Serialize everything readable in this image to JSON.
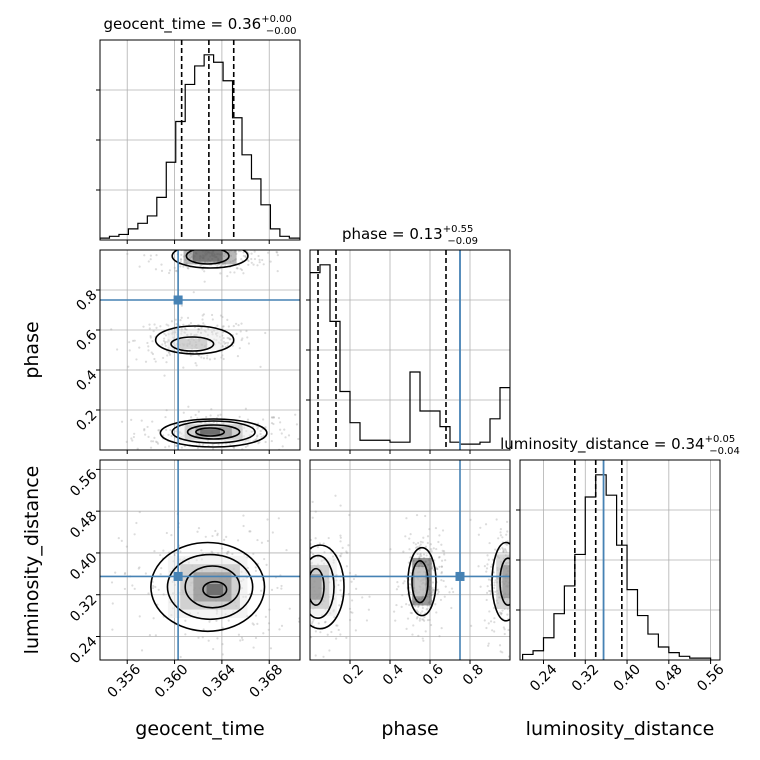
{
  "chart_data": {
    "type": "corner",
    "parameters": [
      "geocent_time",
      "phase",
      "luminosity_distance"
    ],
    "truths": [
      0.3603,
      0.75,
      0.355
    ],
    "titles": [
      {
        "name": "geocent_time",
        "value": "0.36",
        "plus": "+0.00",
        "minus": "−0.00"
      },
      {
        "name": "phase",
        "value": "0.13",
        "plus": "+0.55",
        "minus": "−0.09"
      },
      {
        "name": "luminosity_distance",
        "value": "0.34",
        "plus": "+0.05",
        "minus": "−0.04"
      }
    ],
    "axes": {
      "geocent_time": {
        "range": [
          0.3537,
          0.3706
        ],
        "ticks": [
          0.356,
          0.36,
          0.364,
          0.368
        ],
        "tick_labels": [
          "0.356",
          "0.360",
          "0.364",
          "0.368"
        ]
      },
      "phase": {
        "range": [
          0.0,
          1.0
        ],
        "ticks": [
          0.2,
          0.4,
          0.6,
          0.8
        ],
        "tick_labels": [
          "0.2",
          "0.4",
          "0.6",
          "0.8"
        ]
      },
      "luminosity_distance": {
        "range": [
          0.195,
          0.578
        ],
        "ticks": [
          0.24,
          0.32,
          0.4,
          0.48,
          0.56
        ],
        "tick_labels": [
          "0.24",
          "0.32",
          "0.40",
          "0.48",
          "0.56"
        ]
      }
    },
    "quantiles": [
      [
        0.3606,
        0.3629,
        0.365
      ],
      [
        0.04,
        0.13,
        0.68
      ],
      [
        0.3,
        0.34,
        0.39
      ]
    ],
    "histograms": [
      {
        "bin_edges": [
          0.3537,
          0.3545,
          0.3553,
          0.3561,
          0.3569,
          0.3577,
          0.3585,
          0.3593,
          0.3601,
          0.3609,
          0.3617,
          0.3625,
          0.3633,
          0.3641,
          0.3649,
          0.3657,
          0.3665,
          0.3673,
          0.3681,
          0.3689,
          0.3697,
          0.3706
        ],
        "counts": [
          1,
          2,
          3,
          6,
          9,
          13,
          23,
          42,
          64,
          84,
          94,
          100,
          96,
          86,
          66,
          46,
          33,
          19,
          6,
          2,
          1
        ]
      },
      {
        "bin_edges": [
          0.0,
          0.05,
          0.1,
          0.15,
          0.2,
          0.25,
          0.3,
          0.35,
          0.4,
          0.45,
          0.5,
          0.55,
          0.6,
          0.65,
          0.7,
          0.75,
          0.8,
          0.85,
          0.9,
          0.95,
          1.0
        ],
        "counts": [
          91,
          95,
          66,
          30,
          14,
          5,
          5,
          5,
          4,
          4,
          40,
          20,
          20,
          12,
          4,
          3,
          3,
          4,
          16,
          32
        ]
      },
      {
        "bin_edges": [
          0.2,
          0.22,
          0.24,
          0.26,
          0.28,
          0.3,
          0.32,
          0.34,
          0.36,
          0.38,
          0.4,
          0.42,
          0.44,
          0.46,
          0.48,
          0.5,
          0.52,
          0.54,
          0.56
        ],
        "counts": [
          3,
          5,
          12,
          25,
          40,
          57,
          88,
          100,
          89,
          62,
          38,
          24,
          14,
          7,
          4,
          2,
          1,
          1
        ]
      }
    ],
    "pairs": [
      {
        "x": "geocent_time",
        "y": "phase",
        "density": [
          [
            0.3635,
            0.08,
            1.0
          ],
          [
            0.3627,
            0.08,
            0.8
          ],
          [
            0.362,
            0.55,
            0.45
          ],
          [
            0.3632,
            0.95,
            0.4
          ]
        ],
        "contours": [
          {
            "param": "geocent_time",
            "cx": 0.3633,
            "cy": 0.085,
            "rx": 0.0045,
            "ry": 0.07
          },
          {
            "param": "geocent_time",
            "cx": 0.3633,
            "cy": 0.09,
            "rx": 0.0035,
            "ry": 0.055
          },
          {
            "param": "geocent_time",
            "cx": 0.3633,
            "cy": 0.09,
            "rx": 0.0022,
            "ry": 0.035
          },
          {
            "param": "geocent_time",
            "cx": 0.363,
            "cy": 0.09,
            "rx": 0.0012,
            "ry": 0.02
          },
          {
            "param": "geocent_time",
            "cx": 0.3617,
            "cy": 0.55,
            "rx": 0.0033,
            "ry": 0.07
          },
          {
            "param": "geocent_time",
            "cx": 0.3615,
            "cy": 0.53,
            "rx": 0.0018,
            "ry": 0.035
          },
          {
            "param": "geocent_time",
            "cx": 0.363,
            "cy": 0.97,
            "rx": 0.0032,
            "ry": 0.06
          },
          {
            "param": "geocent_time",
            "cx": 0.3628,
            "cy": 0.97,
            "rx": 0.0018,
            "ry": 0.04
          }
        ]
      },
      {
        "x": "geocent_time",
        "y": "luminosity_distance",
        "contours": [
          {
            "cx": 0.3628,
            "cy": 0.335,
            "rx": 0.0048,
            "ry": 0.085
          },
          {
            "cx": 0.363,
            "cy": 0.335,
            "rx": 0.0036,
            "ry": 0.062
          },
          {
            "cx": 0.3632,
            "cy": 0.335,
            "rx": 0.0023,
            "ry": 0.04
          },
          {
            "cx": 0.3634,
            "cy": 0.33,
            "rx": 0.001,
            "ry": 0.015
          }
        ]
      },
      {
        "x": "phase",
        "y": "luminosity_distance",
        "contours": [
          {
            "cx": 0.05,
            "cy": 0.335,
            "rx": 0.12,
            "ry": 0.08
          },
          {
            "cx": 0.04,
            "cy": 0.335,
            "rx": 0.08,
            "ry": 0.06
          },
          {
            "cx": 0.03,
            "cy": 0.335,
            "rx": 0.04,
            "ry": 0.035
          },
          {
            "cx": 0.56,
            "cy": 0.345,
            "rx": 0.07,
            "ry": 0.065
          },
          {
            "cx": 0.55,
            "cy": 0.345,
            "rx": 0.04,
            "ry": 0.04
          },
          {
            "cx": 0.98,
            "cy": 0.345,
            "rx": 0.07,
            "ry": 0.075
          },
          {
            "cx": 0.99,
            "cy": 0.345,
            "rx": 0.04,
            "ry": 0.045
          }
        ]
      }
    ],
    "colors": {
      "truth": "#4682b4",
      "line": "#000000",
      "grid": "#b0b0b0",
      "scatter": "#9a9a9a"
    },
    "grid": true
  }
}
